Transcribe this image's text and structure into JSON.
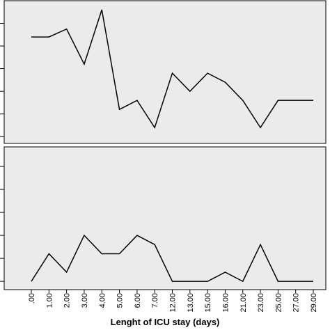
{
  "chart_data": [
    {
      "type": "line",
      "color": "#000000",
      "background": "#ebebeb",
      "values": [
        4.4,
        4.4,
        4.75,
        3.2,
        5.6,
        1.2,
        1.6,
        0.4,
        2.8,
        2.0,
        2.8,
        2.4,
        1.6,
        0.4,
        1.6,
        1.6,
        1.6
      ],
      "ylim": [
        -0.3,
        6
      ],
      "yticks": [
        0,
        1,
        2,
        3,
        4,
        5
      ]
    },
    {
      "type": "line",
      "color": "#000000",
      "background": "#ebebeb",
      "x_label": "Lenght of ICU stay (days)",
      "categories": [
        ".00",
        "1.00",
        "2.00",
        "3.00",
        "4.00",
        "5.00",
        "6.00",
        "7.00",
        "12.00",
        "13.00",
        "15.00",
        "16.00",
        "21.00",
        "23.00",
        "25.00",
        "27.00",
        "29.00"
      ],
      "values": [
        0,
        1.2,
        0.4,
        2,
        1.2,
        1.2,
        2,
        1.6,
        0,
        0,
        0,
        0.4,
        0,
        1.6,
        0,
        0,
        0
      ],
      "ylim": [
        -0.36,
        5.85
      ],
      "yticks": [
        0,
        1,
        2,
        3,
        4,
        5
      ]
    }
  ]
}
